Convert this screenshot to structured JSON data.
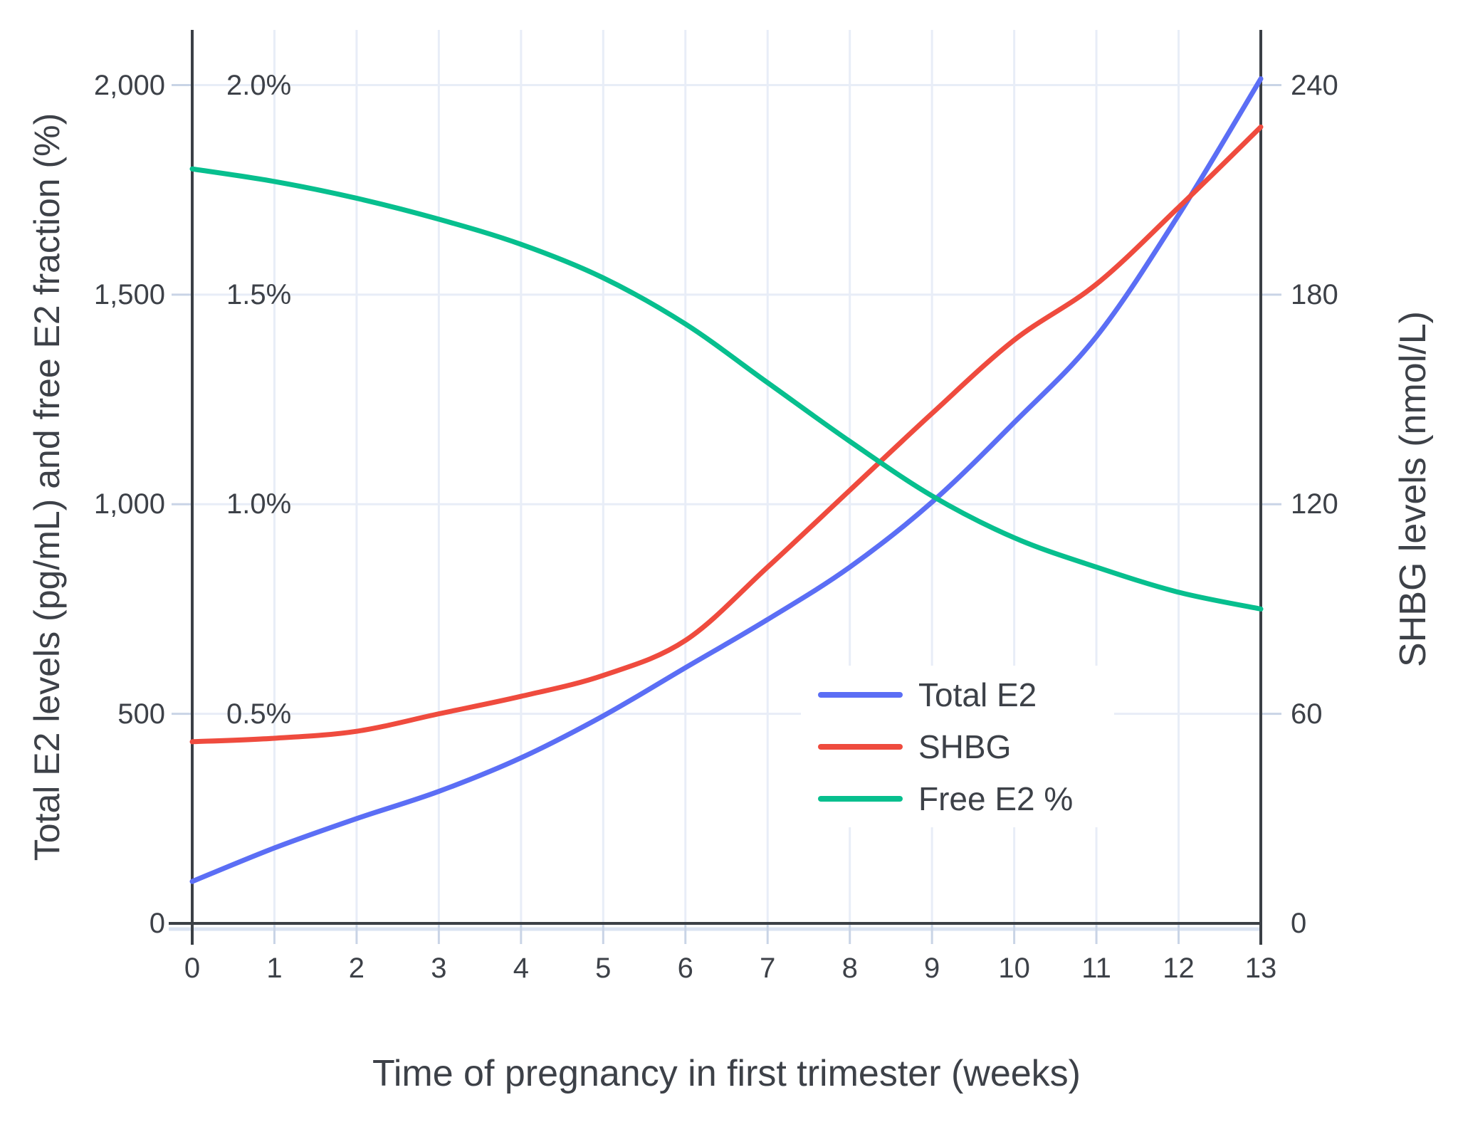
{
  "chart_data": {
    "type": "line",
    "x": [
      0,
      1,
      2,
      3,
      4,
      5,
      6,
      7,
      8,
      9,
      10,
      11,
      12,
      13
    ],
    "x_tick_labels": [
      "0",
      "1",
      "2",
      "3",
      "4",
      "5",
      "6",
      "7",
      "8",
      "9",
      "10",
      "11",
      "12",
      "13"
    ],
    "xlim": [
      0,
      13
    ],
    "xlabel": "Time of pregnancy in first trimester (weeks)",
    "ylabel_left": "Total E2 levels (pg/mL) and free E2 fraction (%)",
    "ylabel_right": "SHBG levels (nmol/L)",
    "ylim_left": [
      0,
      2130
    ],
    "ylim_right": [
      0,
      255
    ],
    "grid": true,
    "legend_position": "inside-center-right",
    "series": [
      {
        "name": "Total E2",
        "axis": "left",
        "units": "pg/mL",
        "color": "#5B6EF5",
        "values": [
          100,
          180,
          250,
          315,
          395,
          495,
          610,
          725,
          850,
          1005,
          1195,
          1400,
          1690,
          2015
        ]
      },
      {
        "name": "SHBG",
        "axis": "right",
        "units": "nmol/L",
        "color": "#EF4B3E",
        "values": [
          52,
          53,
          55,
          60,
          65,
          71,
          81,
          102,
          124,
          146,
          167,
          183,
          205,
          228
        ]
      },
      {
        "name": "Free E2 %",
        "axis": "left_percent",
        "units": "%",
        "color": "#07BF8E",
        "values": [
          1.8,
          1.77,
          1.73,
          1.68,
          1.62,
          1.54,
          1.43,
          1.29,
          1.15,
          1.02,
          0.92,
          0.85,
          0.79,
          0.75
        ]
      }
    ],
    "right_to_left_factor": 8.3333,
    "percent_to_left_factor": 1000,
    "y_left_ticks": {
      "values": [
        0,
        500,
        1000,
        1500,
        2000
      ],
      "labels": [
        "0",
        "500",
        "1,000",
        "1,500",
        "2,000"
      ]
    },
    "y_left_percent_ticks": {
      "values": [
        500,
        1000,
        1500,
        2000
      ],
      "labels": [
        "0.5%",
        "1.0%",
        "1.5%",
        "2.0%"
      ]
    },
    "y_right_ticks": {
      "values": [
        0,
        60,
        120,
        180,
        240
      ],
      "labels": [
        "0",
        "60",
        "120",
        "180",
        "240"
      ]
    },
    "colors": {
      "axis": "#3B4046",
      "grid": "#E8EDF7",
      "tick": "#C9D4E6",
      "zero_band": "#DBE4F2",
      "text": "#3D4148",
      "background": "#FFFFFF"
    }
  }
}
